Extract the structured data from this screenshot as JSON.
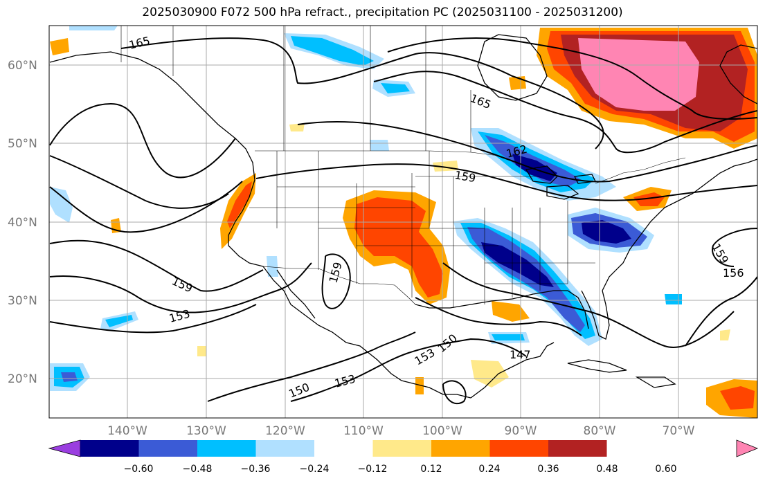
{
  "title": "2025030900 F072 500 hPa refract., precipitation PC (2025031100 - 2025031200)",
  "lat_labels": [
    "60°N",
    "50°N",
    "40°N",
    "30°N",
    "20°N"
  ],
  "lon_labels": [
    "140°W",
    "130°W",
    "120°W",
    "110°W",
    "100°W",
    "90°W",
    "80°W",
    "70°W"
  ],
  "contour_labels": [
    "165",
    "165",
    "162",
    "159",
    "159",
    "153",
    "159",
    "150",
    "153",
    "153",
    "150",
    "147",
    "159",
    "156"
  ],
  "colorbar": {
    "ticks": [
      "−0.60",
      "−0.48",
      "−0.36",
      "−0.24",
      "−0.12",
      "0.12",
      "0.24",
      "0.36",
      "0.48",
      "0.60"
    ],
    "colors": [
      "#9a3ee0",
      "#00008b",
      "#3b5bd6",
      "#00bfff",
      "#b0e0ff",
      "#ffffff",
      "#ffe98a",
      "#ffa500",
      "#ff4500",
      "#b22222",
      "#ff85b3"
    ]
  }
}
